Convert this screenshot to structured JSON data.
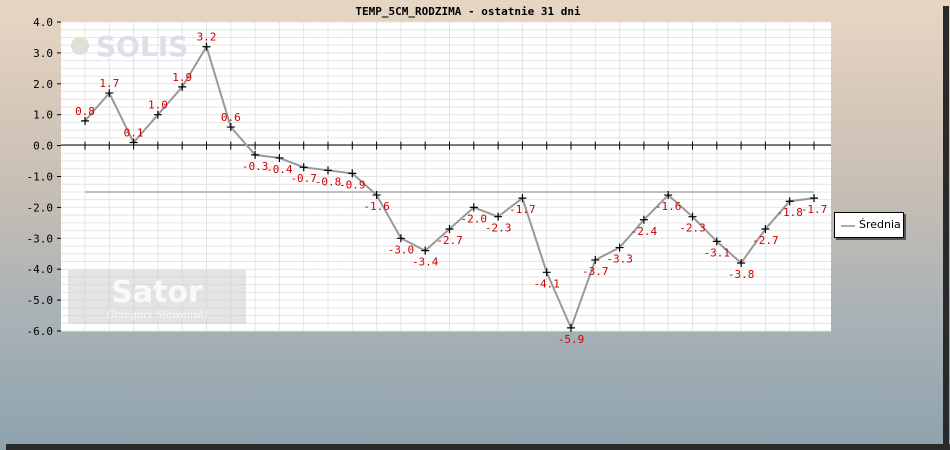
{
  "chart_data": {
    "type": "line",
    "title": "TEMP_5CM_RODZIMA - ostatnie 31 dni",
    "xlabel": "",
    "ylabel": "",
    "ylim": [
      -6.0,
      4.0
    ],
    "yticks": [
      "4.0",
      "3.0",
      "2.0",
      "1.0",
      "0.0",
      "-1.0",
      "-2.0",
      "-3.0",
      "-4.0",
      "-5.0",
      "-6.0"
    ],
    "grid": true,
    "legend_position": "right",
    "series": [
      {
        "values": [
          0.8,
          1.7,
          0.1,
          1.0,
          1.9,
          3.2,
          0.6,
          -0.3,
          -0.4,
          -0.7,
          -0.8,
          -0.9,
          -1.6,
          -3.0,
          -3.4,
          -2.7,
          -2.0,
          -2.3,
          -1.7,
          -4.1,
          -5.9,
          -3.7,
          -3.3,
          -2.4,
          -1.6,
          -2.3,
          -3.1,
          -3.8,
          -2.7,
          -1.8,
          -1.7
        ],
        "labels": [
          "0.8",
          "1.7",
          "0.1",
          "1.0",
          "1.9",
          "3.2",
          "0.6",
          "-0.3",
          "-0.4",
          "-0.7",
          "-0.8",
          "-0.9",
          "-1.6",
          "-3.0",
          "-3.4",
          "-2.7",
          "-2.0",
          "-2.3",
          "-1.7",
          "-4.1",
          "-5.9",
          "-3.7",
          "-3.3",
          "-2.4",
          "-1.6",
          "-2.3",
          "-3.1",
          "-3.8",
          "-2.7",
          "-1.8",
          "-1.7"
        ],
        "color": "#999999",
        "label_color": "#cc0000"
      },
      {
        "name": "Średnia",
        "values": [
          -1.5,
          -1.5
        ],
        "color": "#aaaaaa"
      }
    ]
  },
  "watermarks": {
    "top": "SOLIS",
    "bottom": "Sator",
    "bottom_sub": "Grzegorz Sławoński"
  }
}
